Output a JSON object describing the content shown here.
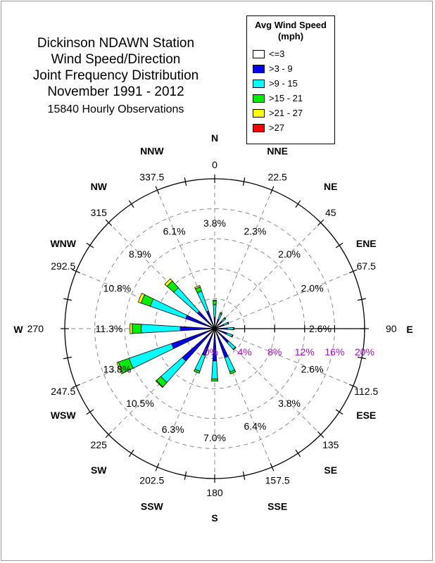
{
  "title": {
    "lines": [
      "Dickinson NDAWN Station",
      "Wind Speed/Direction",
      "Joint Frequency Distribution",
      "November 1991 - 2012"
    ],
    "observations": "15840 Hourly Observations"
  },
  "legend": {
    "title_line1": "Avg Wind Speed",
    "title_line2": "(mph)",
    "items": [
      {
        "label": "<=3",
        "color": "#ffffff"
      },
      {
        "label": ">3 - 9",
        "color": "#0000ee"
      },
      {
        "label": ">9 - 15",
        "color": "#00ffff"
      },
      {
        "label": ">15 - 21",
        "color": "#00ee00"
      },
      {
        "label": ">21 - 27",
        "color": "#ffff00"
      },
      {
        "label": ">27",
        "color": "#ff0000"
      }
    ]
  },
  "chart_data": {
    "type": "wind_rose",
    "radial_unit": "%",
    "radial_ticks": [
      "0%",
      "4%",
      "8%",
      "12%",
      "16%",
      "20%"
    ],
    "radial_max": 20,
    "radial_tick_color": "#a010c0",
    "directions": [
      {
        "name": "N",
        "degree_label": "0",
        "angle": 0,
        "total_label": "3.8%",
        "segments": [
          0.3,
          1.2,
          1.7,
          0.5,
          0.1,
          0
        ]
      },
      {
        "name": "NNE",
        "degree_label": "22.5",
        "angle": 22.5,
        "total_label": "2.3%",
        "segments": [
          0.2,
          1.1,
          0.8,
          0.2,
          0,
          0
        ]
      },
      {
        "name": "NE",
        "degree_label": "45",
        "angle": 45,
        "total_label": "2.0%",
        "segments": [
          0.2,
          1.1,
          0.6,
          0.1,
          0,
          0
        ]
      },
      {
        "name": "ENE",
        "degree_label": "67.5",
        "angle": 67.5,
        "total_label": "2.0%",
        "segments": [
          0.2,
          1.1,
          0.6,
          0.1,
          0,
          0
        ]
      },
      {
        "name": "E",
        "degree_label": "90",
        "angle": 90,
        "total_label": "2.6%",
        "segments": [
          0.2,
          1.5,
          0.8,
          0.1,
          0,
          0
        ]
      },
      {
        "name": "ESE",
        "degree_label": "112.5",
        "angle": 112.5,
        "total_label": "2.6%",
        "segments": [
          0.2,
          1.5,
          0.8,
          0.1,
          0,
          0
        ]
      },
      {
        "name": "SE",
        "degree_label": "135",
        "angle": 135,
        "total_label": "3.8%",
        "segments": [
          0.3,
          2.2,
          1.2,
          0.1,
          0,
          0
        ]
      },
      {
        "name": "SSE",
        "degree_label": "157.5",
        "angle": 157.5,
        "total_label": "6.4%",
        "segments": [
          0.3,
          3.8,
          2.0,
          0.3,
          0,
          0
        ]
      },
      {
        "name": "S",
        "degree_label": "180",
        "angle": 180,
        "total_label": "7.0%",
        "segments": [
          0.3,
          4.0,
          2.4,
          0.3,
          0,
          0
        ]
      },
      {
        "name": "SSW",
        "degree_label": "202.5",
        "angle": 202.5,
        "total_label": "6.3%",
        "segments": [
          0.3,
          3.5,
          2.2,
          0.3,
          0,
          0
        ]
      },
      {
        "name": "SW",
        "degree_label": "225",
        "angle": 225,
        "total_label": "10.5%",
        "segments": [
          0.3,
          5.5,
          3.8,
          0.8,
          0.1,
          0
        ]
      },
      {
        "name": "WSW",
        "degree_label": "247.5",
        "angle": 247.5,
        "total_label": "13.8%",
        "segments": [
          0.3,
          5.8,
          6.0,
          1.5,
          0.2,
          0
        ]
      },
      {
        "name": "W",
        "degree_label": "270",
        "angle": 270,
        "total_label": "11.3%",
        "segments": [
          0.3,
          4.3,
          5.2,
          1.2,
          0.3,
          0
        ]
      },
      {
        "name": "WNW",
        "degree_label": "292.5",
        "angle": 292.5,
        "total_label": "10.8%",
        "segments": [
          0.3,
          3.8,
          5.0,
          1.3,
          0.4,
          0
        ]
      },
      {
        "name": "NW",
        "degree_label": "315",
        "angle": 315,
        "total_label": "8.9%",
        "segments": [
          0.3,
          2.8,
          4.2,
          1.2,
          0.4,
          0
        ]
      },
      {
        "name": "NNW",
        "degree_label": "337.5",
        "angle": 337.5,
        "total_label": "6.1%",
        "segments": [
          0.3,
          2.2,
          2.8,
          0.6,
          0.2,
          0
        ]
      }
    ]
  }
}
